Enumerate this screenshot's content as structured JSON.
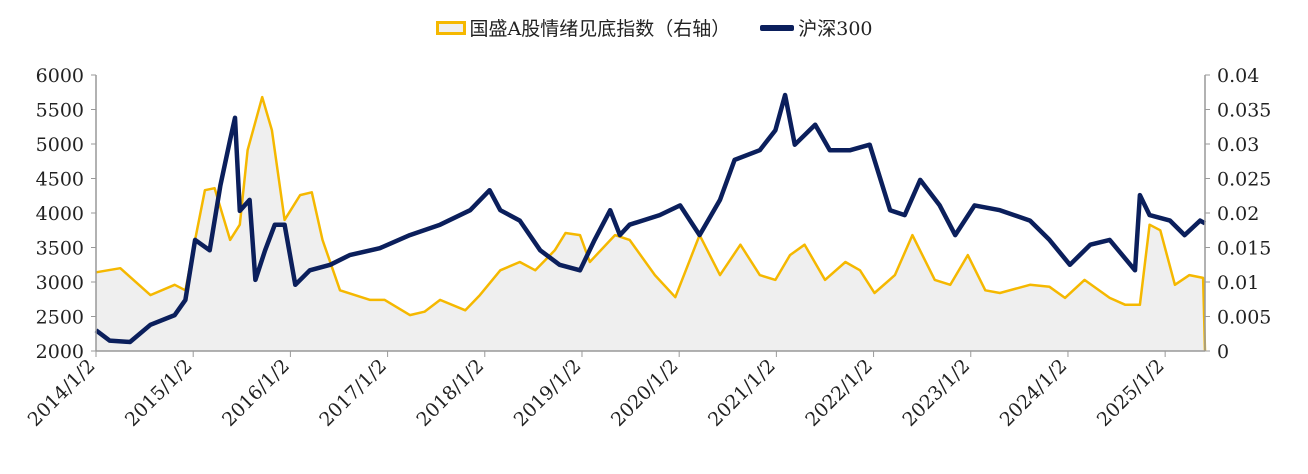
{
  "chart_data": {
    "type": "line",
    "title": "",
    "legend_position": "top-center",
    "x_tick_labels": [
      "2014/1/2",
      "2015/1/2",
      "2016/1/2",
      "2017/1/2",
      "2018/1/2",
      "2019/1/2",
      "2020/1/2",
      "2021/1/2",
      "2022/1/2",
      "2023/1/2",
      "2024/1/2",
      "2025/1/2"
    ],
    "xlim": [
      2014.0,
      2025.41
    ],
    "y_left": {
      "ylim": [
        2000,
        6000
      ],
      "ticks": [
        "2000",
        "2500",
        "3000",
        "3500",
        "4000",
        "4500",
        "5000",
        "5500",
        "6000"
      ]
    },
    "y_right": {
      "ylim": [
        0,
        0.04
      ],
      "ticks": [
        "0",
        "0.005",
        "0.01",
        "0.015",
        "0.02",
        "0.025",
        "0.03",
        "0.035",
        "0.04"
      ]
    },
    "series": [
      {
        "name": "国盛A股情绪见底指数（右轴）",
        "axis": "right",
        "style": "area",
        "color": "#F5B800",
        "fill": "#EFEFEF",
        "x": [
          2014.0,
          2014.25,
          2014.56,
          2014.81,
          2014.92,
          2015.02,
          2015.12,
          2015.22,
          2015.38,
          2015.48,
          2015.56,
          2015.71,
          2015.81,
          2015.94,
          2016.1,
          2016.22,
          2016.33,
          2016.51,
          2016.82,
          2016.97,
          2017.23,
          2017.38,
          2017.54,
          2017.8,
          2017.95,
          2018.16,
          2018.36,
          2018.52,
          2018.72,
          2018.83,
          2018.98,
          2019.08,
          2019.34,
          2019.49,
          2019.75,
          2019.96,
          2020.11,
          2020.21,
          2020.42,
          2020.63,
          2020.83,
          2020.99,
          2021.14,
          2021.29,
          2021.5,
          2021.71,
          2021.86,
          2022.01,
          2022.22,
          2022.4,
          2022.63,
          2022.79,
          2022.97,
          2023.15,
          2023.3,
          2023.61,
          2023.81,
          2023.97,
          2024.17,
          2024.43,
          2024.59,
          2024.74,
          2024.84,
          2024.95,
          2025.1,
          2025.25,
          2025.39,
          2025.41
        ],
        "y": [
          0.0114,
          0.012,
          0.0081,
          0.0096,
          0.0088,
          0.0161,
          0.0233,
          0.0236,
          0.0161,
          0.0183,
          0.0291,
          0.0368,
          0.032,
          0.019,
          0.0226,
          0.023,
          0.0161,
          0.0088,
          0.0074,
          0.0074,
          0.0052,
          0.0057,
          0.0074,
          0.0059,
          0.0081,
          0.0117,
          0.0129,
          0.0117,
          0.0146,
          0.0171,
          0.0168,
          0.0129,
          0.0168,
          0.0161,
          0.011,
          0.0078,
          0.0132,
          0.0168,
          0.011,
          0.0154,
          0.011,
          0.0103,
          0.0139,
          0.0154,
          0.0103,
          0.0129,
          0.0117,
          0.0084,
          0.011,
          0.0168,
          0.0103,
          0.0096,
          0.0139,
          0.0088,
          0.0084,
          0.0096,
          0.0093,
          0.0077,
          0.0103,
          0.0077,
          0.0067,
          0.0067,
          0.0183,
          0.0175,
          0.0096,
          0.011,
          0.0106,
          0
        ]
      },
      {
        "name": "沪深300",
        "axis": "left",
        "style": "line",
        "color": "#0B1F5C",
        "x": [
          2014.0,
          2014.14,
          2014.35,
          2014.56,
          2014.81,
          2014.92,
          2015.02,
          2015.17,
          2015.28,
          2015.38,
          2015.43,
          2015.48,
          2015.58,
          2015.64,
          2015.74,
          2015.84,
          2015.94,
          2016.05,
          2016.2,
          2016.41,
          2016.61,
          2016.92,
          2017.23,
          2017.54,
          2017.85,
          2018.05,
          2018.16,
          2018.36,
          2018.57,
          2018.77,
          2018.98,
          2019.13,
          2019.29,
          2019.39,
          2019.49,
          2019.8,
          2020.01,
          2020.21,
          2020.42,
          2020.57,
          2020.83,
          2020.99,
          2021.09,
          2021.19,
          2021.4,
          2021.55,
          2021.76,
          2021.96,
          2022.17,
          2022.32,
          2022.48,
          2022.68,
          2022.84,
          2023.04,
          2023.3,
          2023.61,
          2023.81,
          2024.02,
          2024.23,
          2024.43,
          2024.69,
          2024.74,
          2024.84,
          2025.05,
          2025.2,
          2025.36,
          2025.41
        ],
        "y": [
          2300,
          2150,
          2130,
          2380,
          2520,
          2740,
          3610,
          3460,
          4400,
          5060,
          5380,
          4030,
          4190,
          3030,
          3460,
          3830,
          3830,
          2960,
          3170,
          3250,
          3390,
          3490,
          3680,
          3830,
          4040,
          4330,
          4040,
          3890,
          3460,
          3250,
          3170,
          3610,
          4040,
          3680,
          3830,
          3970,
          4110,
          3680,
          4190,
          4770,
          4910,
          5200,
          5710,
          4990,
          5280,
          4910,
          4910,
          4990,
          4040,
          3970,
          4480,
          4110,
          3680,
          4110,
          4040,
          3890,
          3610,
          3250,
          3540,
          3610,
          3170,
          4260,
          3970,
          3890,
          3680,
          3890,
          3850
        ]
      }
    ]
  }
}
